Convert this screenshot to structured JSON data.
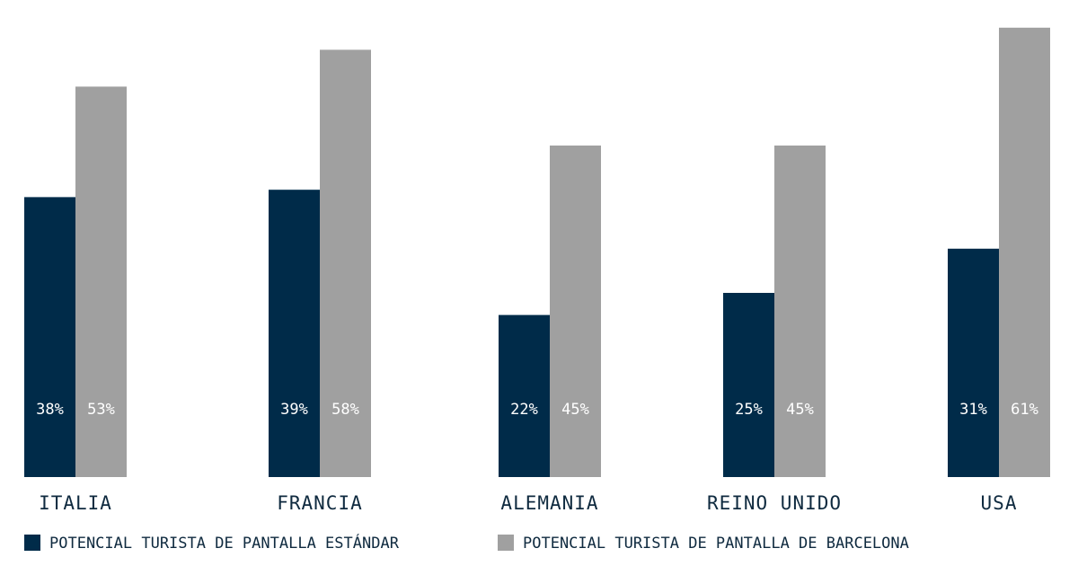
{
  "chart_data": {
    "type": "bar",
    "title": "",
    "xlabel": "",
    "ylabel": "",
    "categories": [
      "ITALIA",
      "FRANCIA",
      "ALEMANIA",
      "REINO UNIDO",
      "USA"
    ],
    "series": [
      {
        "name": "POTENCIAL TURISTA DE PANTALLA ESTÁNDAR",
        "color": "#002b49",
        "values": [
          38,
          39,
          22,
          25,
          31
        ],
        "labels": [
          "38%",
          "39%",
          "22%",
          "25%",
          "31%"
        ]
      },
      {
        "name": "POTENCIAL TURISTA DE PANTALLA DE BARCELONA",
        "color": "#a0a0a0",
        "values": [
          53,
          58,
          45,
          45,
          61
        ],
        "labels": [
          "53%",
          "58%",
          "45%",
          "45%",
          "61%"
        ]
      }
    ],
    "ylim": [
      0,
      65
    ],
    "grid": false,
    "legend": "bottom-left",
    "value_unit": "%"
  }
}
